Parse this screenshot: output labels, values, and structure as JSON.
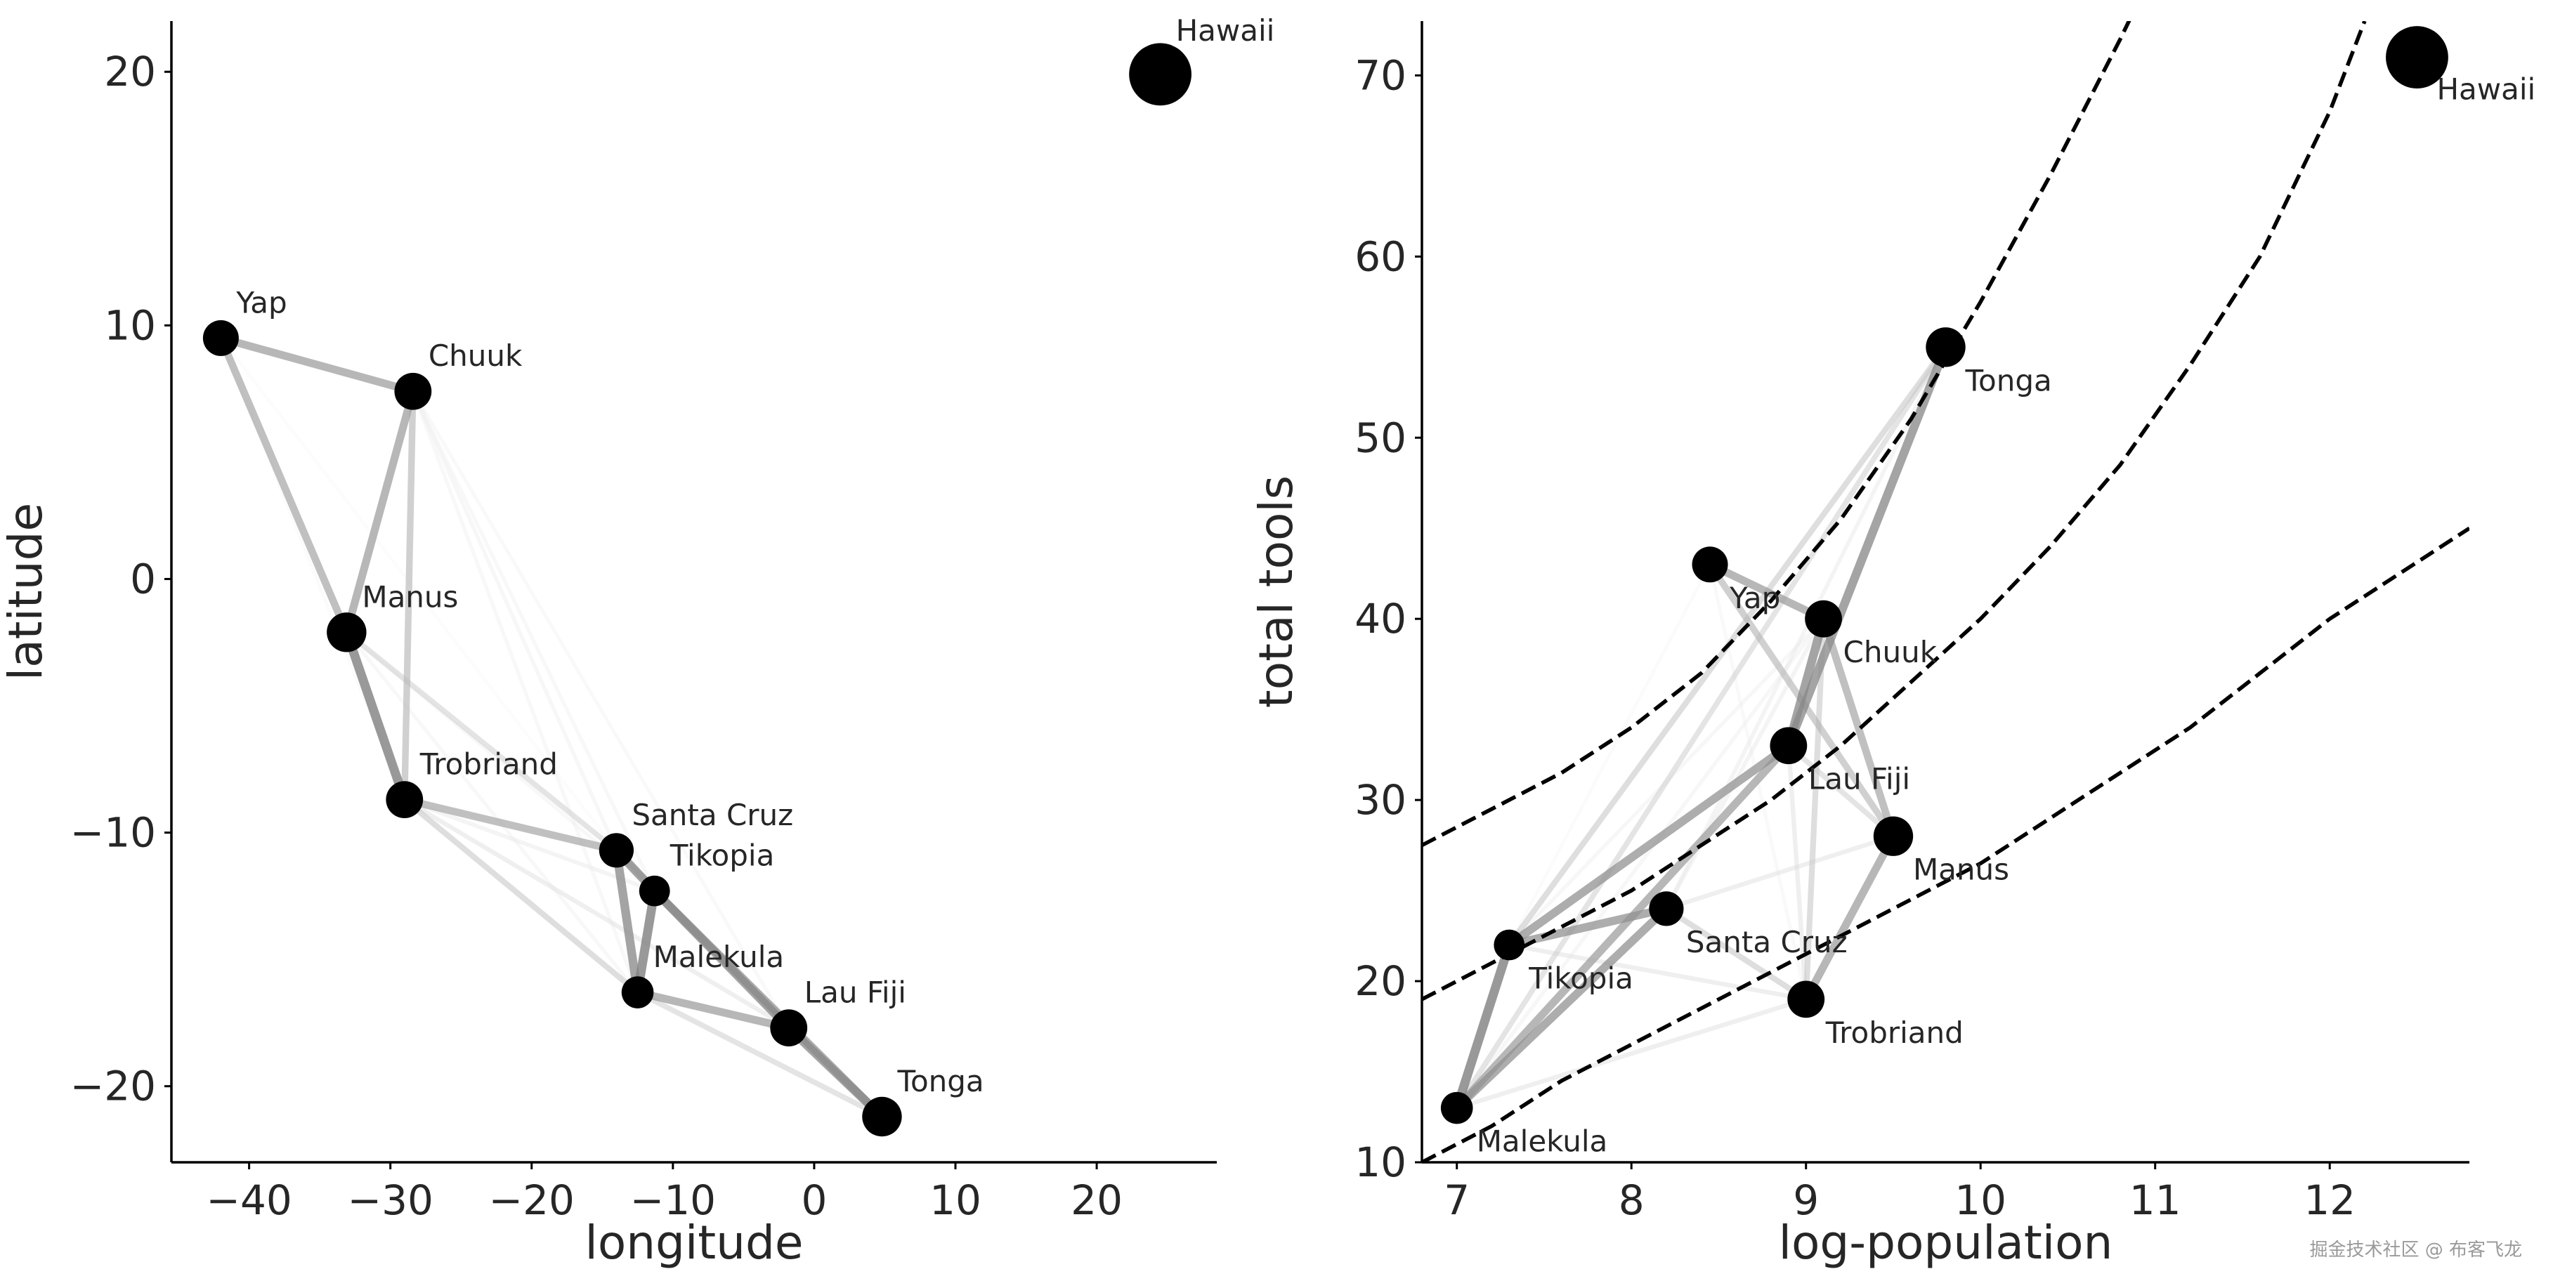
{
  "watermark": "掘金技术社区 @ 布客飞龙",
  "chart_data": [
    {
      "type": "scatter",
      "title": "",
      "xlabel": "longitude",
      "ylabel": "latitude",
      "xlim": [
        -45.5,
        28.5
      ],
      "ylim": [
        -23,
        22
      ],
      "xticks": [
        -40,
        -30,
        -20,
        -10,
        0,
        10,
        20
      ],
      "yticks": [
        -20,
        -10,
        0,
        10,
        20
      ],
      "points": [
        {
          "label": "Malekula",
          "x": -12.5,
          "y": -16.3,
          "size": 0.6
        },
        {
          "label": "Tikopia",
          "x": -11.3,
          "y": -12.3,
          "size": 0.55
        },
        {
          "label": "Santa Cruz",
          "x": -14.0,
          "y": -10.7,
          "size": 0.7
        },
        {
          "label": "Yap",
          "x": -42.0,
          "y": 9.5,
          "size": 0.75
        },
        {
          "label": "Lau Fiji",
          "x": -1.8,
          "y": -17.7,
          "size": 0.8
        },
        {
          "label": "Trobriand",
          "x": -29.0,
          "y": -8.7,
          "size": 0.8
        },
        {
          "label": "Chuuk",
          "x": -28.4,
          "y": 7.4,
          "size": 0.8
        },
        {
          "label": "Manus",
          "x": -33.1,
          "y": -2.1,
          "size": 0.9
        },
        {
          "label": "Tonga",
          "x": 4.8,
          "y": -21.2,
          "size": 0.9
        },
        {
          "label": "Hawaii",
          "x": 24.5,
          "y": 19.9,
          "size": 1.8
        }
      ],
      "edges": [
        {
          "a": "Yap",
          "b": "Chuuk",
          "shade": 0.6
        },
        {
          "a": "Yap",
          "b": "Manus",
          "shade": 0.55
        },
        {
          "a": "Chuuk",
          "b": "Manus",
          "shade": 0.6
        },
        {
          "a": "Chuuk",
          "b": "Trobriand",
          "shade": 0.45
        },
        {
          "a": "Manus",
          "b": "Trobriand",
          "shade": 0.75
        },
        {
          "a": "Manus",
          "b": "Santa Cruz",
          "shade": 0.3
        },
        {
          "a": "Trobriand",
          "b": "Santa Cruz",
          "shade": 0.55
        },
        {
          "a": "Trobriand",
          "b": "Malekula",
          "shade": 0.35
        },
        {
          "a": "Trobriand",
          "b": "Lau Fiji",
          "shade": 0.2
        },
        {
          "a": "Santa Cruz",
          "b": "Tikopia",
          "shade": 0.7
        },
        {
          "a": "Santa Cruz",
          "b": "Malekula",
          "shade": 0.7
        },
        {
          "a": "Tikopia",
          "b": "Malekula",
          "shade": 0.75
        },
        {
          "a": "Tikopia",
          "b": "Lau Fiji",
          "shade": 0.7
        },
        {
          "a": "Tikopia",
          "b": "Tonga",
          "shade": 0.65
        },
        {
          "a": "Malekula",
          "b": "Lau Fiji",
          "shade": 0.6
        },
        {
          "a": "Malekula",
          "b": "Tonga",
          "shade": 0.3
        },
        {
          "a": "Lau Fiji",
          "b": "Tonga",
          "shade": 0.7
        },
        {
          "a": "Santa Cruz",
          "b": "Lau Fiji",
          "shade": 0.35
        },
        {
          "a": "Chuuk",
          "b": "Santa Cruz",
          "shade": 0.12
        },
        {
          "a": "Chuuk",
          "b": "Tikopia",
          "shade": 0.1
        },
        {
          "a": "Chuuk",
          "b": "Malekula",
          "shade": 0.1
        },
        {
          "a": "Chuuk",
          "b": "Lau Fiji",
          "shade": 0.08
        },
        {
          "a": "Yap",
          "b": "Santa Cruz",
          "shade": 0.05
        },
        {
          "a": "Yap",
          "b": "Trobriand",
          "shade": 0.06
        },
        {
          "a": "Manus",
          "b": "Malekula",
          "shade": 0.1
        },
        {
          "a": "Manus",
          "b": "Tikopia",
          "shade": 0.1
        },
        {
          "a": "Trobriand",
          "b": "Tikopia",
          "shade": 0.15
        },
        {
          "a": "Santa Cruz",
          "b": "Tonga",
          "shade": 0.15
        }
      ]
    },
    {
      "type": "scatter",
      "title": "",
      "xlabel": "log-population",
      "ylabel": "total tools",
      "xlim": [
        6.8,
        12.8
      ],
      "ylim": [
        10,
        73
      ],
      "xticks": [
        7,
        8,
        9,
        10,
        11,
        12
      ],
      "yticks": [
        10,
        20,
        30,
        40,
        50,
        60,
        70
      ],
      "points": [
        {
          "label": "Malekula",
          "x": 7.0,
          "y": 13,
          "size": 0.6
        },
        {
          "label": "Tikopia",
          "x": 7.3,
          "y": 22,
          "size": 0.55
        },
        {
          "label": "Santa Cruz",
          "x": 8.2,
          "y": 24,
          "size": 0.7
        },
        {
          "label": "Yap",
          "x": 8.45,
          "y": 43,
          "size": 0.75
        },
        {
          "label": "Lau Fiji",
          "x": 8.9,
          "y": 33,
          "size": 0.8
        },
        {
          "label": "Trobriand",
          "x": 9.0,
          "y": 19,
          "size": 0.8
        },
        {
          "label": "Chuuk",
          "x": 9.1,
          "y": 40,
          "size": 0.8
        },
        {
          "label": "Manus",
          "x": 9.5,
          "y": 28,
          "size": 0.9
        },
        {
          "label": "Tonga",
          "x": 9.8,
          "y": 55,
          "size": 0.9
        },
        {
          "label": "Hawaii",
          "x": 12.5,
          "y": 71,
          "size": 1.8
        }
      ],
      "curves": [
        {
          "name": "upper",
          "x": [
            6.8,
            7.2,
            7.6,
            8.0,
            8.4,
            8.8,
            9.2,
            9.6,
            10.0,
            10.4,
            10.8,
            11.0
          ],
          "y": [
            27.5,
            29.5,
            31.5,
            34.0,
            37.0,
            41.0,
            45.5,
            51.0,
            57.5,
            64.5,
            72.0,
            76.0
          ]
        },
        {
          "name": "middle",
          "x": [
            6.8,
            7.2,
            7.6,
            8.0,
            8.4,
            8.8,
            9.2,
            9.6,
            10.0,
            10.4,
            10.8,
            11.2,
            11.6,
            12.0,
            12.2
          ],
          "y": [
            19.0,
            21.0,
            23.0,
            25.0,
            27.5,
            30.0,
            33.0,
            36.5,
            40.0,
            44.0,
            48.5,
            54.0,
            60.0,
            68.0,
            73.0
          ]
        },
        {
          "name": "lower",
          "x": [
            6.8,
            7.2,
            7.6,
            8.0,
            8.4,
            8.8,
            9.2,
            9.6,
            10.0,
            10.4,
            10.8,
            11.2,
            11.6,
            12.0,
            12.4,
            12.8
          ],
          "y": [
            10.0,
            12.0,
            14.5,
            16.5,
            18.5,
            20.5,
            22.5,
            24.5,
            26.5,
            29.0,
            31.5,
            34.0,
            37.0,
            40.0,
            42.5,
            45.0
          ]
        }
      ],
      "edges": [
        {
          "a": "Tikopia",
          "b": "Malekula",
          "shade": 0.75
        },
        {
          "a": "Santa Cruz",
          "b": "Tikopia",
          "shade": 0.65
        },
        {
          "a": "Santa Cruz",
          "b": "Malekula",
          "shade": 0.65
        },
        {
          "a": "Lau Fiji",
          "b": "Tikopia",
          "shade": 0.65
        },
        {
          "a": "Lau Fiji",
          "b": "Malekula",
          "shade": 0.6
        },
        {
          "a": "Lau Fiji",
          "b": "Chuuk",
          "shade": 0.7
        },
        {
          "a": "Tonga",
          "b": "Lau Fiji",
          "shade": 0.7
        },
        {
          "a": "Tonga",
          "b": "Tikopia",
          "shade": 0.35
        },
        {
          "a": "Tonga",
          "b": "Malekula",
          "shade": 0.3
        },
        {
          "a": "Yap",
          "b": "Chuuk",
          "shade": 0.6
        },
        {
          "a": "Yap",
          "b": "Manus",
          "shade": 0.45
        },
        {
          "a": "Chuuk",
          "b": "Manus",
          "shade": 0.55
        },
        {
          "a": "Chuuk",
          "b": "Trobriand",
          "shade": 0.35
        },
        {
          "a": "Manus",
          "b": "Trobriand",
          "shade": 0.6
        },
        {
          "a": "Trobriand",
          "b": "Santa Cruz",
          "shade": 0.35
        },
        {
          "a": "Trobriand",
          "b": "Malekula",
          "shade": 0.2
        },
        {
          "a": "Trobriand",
          "b": "Tikopia",
          "shade": 0.2
        },
        {
          "a": "Manus",
          "b": "Santa Cruz",
          "shade": 0.2
        },
        {
          "a": "Chuuk",
          "b": "Tikopia",
          "shade": 0.12
        },
        {
          "a": "Chuuk",
          "b": "Malekula",
          "shade": 0.12
        },
        {
          "a": "Chuuk",
          "b": "Santa Cruz",
          "shade": 0.15
        },
        {
          "a": "Yap",
          "b": "Tikopia",
          "shade": 0.06
        },
        {
          "a": "Yap",
          "b": "Trobriand",
          "shade": 0.08
        },
        {
          "a": "Lau Fiji",
          "b": "Trobriand",
          "shade": 0.2
        },
        {
          "a": "Santa Cruz",
          "b": "Tonga",
          "shade": 0.15
        },
        {
          "a": "Manus",
          "b": "Lau Fiji",
          "shade": 0.3
        }
      ]
    }
  ]
}
